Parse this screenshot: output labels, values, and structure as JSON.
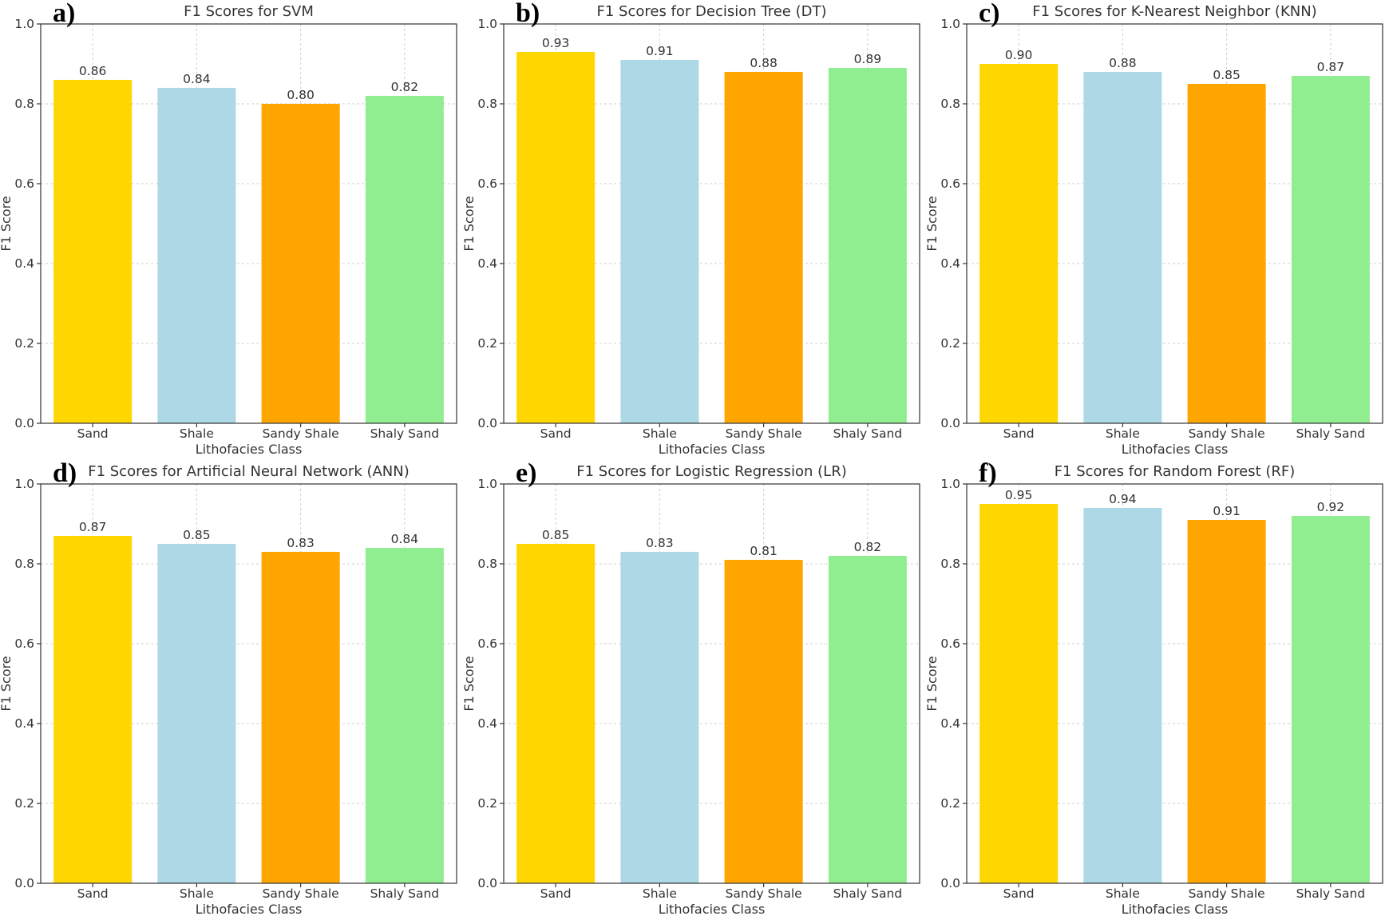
{
  "chart_data": [
    {
      "panel": "a)",
      "type": "bar",
      "title": "F1 Scores for SVM",
      "xlabel": "Lithofacies Class",
      "ylabel": "F1 Score",
      "categories": [
        "Sand",
        "Shale",
        "Sandy Shale",
        "Shaly Sand"
      ],
      "values": [
        0.86,
        0.84,
        0.8,
        0.82
      ],
      "value_labels": [
        "0.86",
        "0.84",
        "0.80",
        "0.82"
      ],
      "colors": [
        "#FFD700",
        "#ADD8E6",
        "#FFA500",
        "#90EE90"
      ],
      "ylim": [
        0,
        1.0
      ],
      "yticks": [
        "0.0",
        "0.2",
        "0.4",
        "0.6",
        "0.8",
        "1.0"
      ],
      "grid": true
    },
    {
      "panel": "b)",
      "type": "bar",
      "title": "F1 Scores for Decision Tree (DT)",
      "xlabel": "Lithofacies Class",
      "ylabel": "F1 Score",
      "categories": [
        "Sand",
        "Shale",
        "Sandy Shale",
        "Shaly Sand"
      ],
      "values": [
        0.93,
        0.91,
        0.88,
        0.89
      ],
      "value_labels": [
        "0.93",
        "0.91",
        "0.88",
        "0.89"
      ],
      "colors": [
        "#FFD700",
        "#ADD8E6",
        "#FFA500",
        "#90EE90"
      ],
      "ylim": [
        0,
        1.0
      ],
      "yticks": [
        "0.0",
        "0.2",
        "0.4",
        "0.6",
        "0.8",
        "1.0"
      ],
      "grid": true
    },
    {
      "panel": "c)",
      "type": "bar",
      "title": "F1 Scores for K-Nearest Neighbor (KNN)",
      "xlabel": "Lithofacies Class",
      "ylabel": "F1 Score",
      "categories": [
        "Sand",
        "Shale",
        "Sandy Shale",
        "Shaly Sand"
      ],
      "values": [
        0.9,
        0.88,
        0.85,
        0.87
      ],
      "value_labels": [
        "0.90",
        "0.88",
        "0.85",
        "0.87"
      ],
      "colors": [
        "#FFD700",
        "#ADD8E6",
        "#FFA500",
        "#90EE90"
      ],
      "ylim": [
        0,
        1.0
      ],
      "yticks": [
        "0.0",
        "0.2",
        "0.4",
        "0.6",
        "0.8",
        "1.0"
      ],
      "grid": true
    },
    {
      "panel": "d)",
      "type": "bar",
      "title": "F1 Scores for Artificial Neural Network (ANN)",
      "xlabel": "Lithofacies Class",
      "ylabel": "F1 Score",
      "categories": [
        "Sand",
        "Shale",
        "Sandy Shale",
        "Shaly Sand"
      ],
      "values": [
        0.87,
        0.85,
        0.83,
        0.84
      ],
      "value_labels": [
        "0.87",
        "0.85",
        "0.83",
        "0.84"
      ],
      "colors": [
        "#FFD700",
        "#ADD8E6",
        "#FFA500",
        "#90EE90"
      ],
      "ylim": [
        0,
        1.0
      ],
      "yticks": [
        "0.0",
        "0.2",
        "0.4",
        "0.6",
        "0.8",
        "1.0"
      ],
      "grid": true
    },
    {
      "panel": "e)",
      "type": "bar",
      "title": "F1 Scores for Logistic Regression (LR)",
      "xlabel": "Lithofacies Class",
      "ylabel": "F1 Score",
      "categories": [
        "Sand",
        "Shale",
        "Sandy Shale",
        "Shaly Sand"
      ],
      "values": [
        0.85,
        0.83,
        0.81,
        0.82
      ],
      "value_labels": [
        "0.85",
        "0.83",
        "0.81",
        "0.82"
      ],
      "colors": [
        "#FFD700",
        "#ADD8E6",
        "#FFA500",
        "#90EE90"
      ],
      "ylim": [
        0,
        1.0
      ],
      "yticks": [
        "0.0",
        "0.2",
        "0.4",
        "0.6",
        "0.8",
        "1.0"
      ],
      "grid": true
    },
    {
      "panel": "f)",
      "type": "bar",
      "title": "F1 Scores for Random Forest (RF)",
      "xlabel": "Lithofacies Class",
      "ylabel": "F1 Score",
      "categories": [
        "Sand",
        "Shale",
        "Sandy Shale",
        "Shaly Sand"
      ],
      "values": [
        0.95,
        0.94,
        0.91,
        0.92
      ],
      "value_labels": [
        "0.95",
        "0.94",
        "0.91",
        "0.92"
      ],
      "colors": [
        "#FFD700",
        "#ADD8E6",
        "#FFA500",
        "#90EE90"
      ],
      "ylim": [
        0,
        1.0
      ],
      "yticks": [
        "0.0",
        "0.2",
        "0.4",
        "0.6",
        "0.8",
        "1.0"
      ],
      "grid": true
    }
  ]
}
